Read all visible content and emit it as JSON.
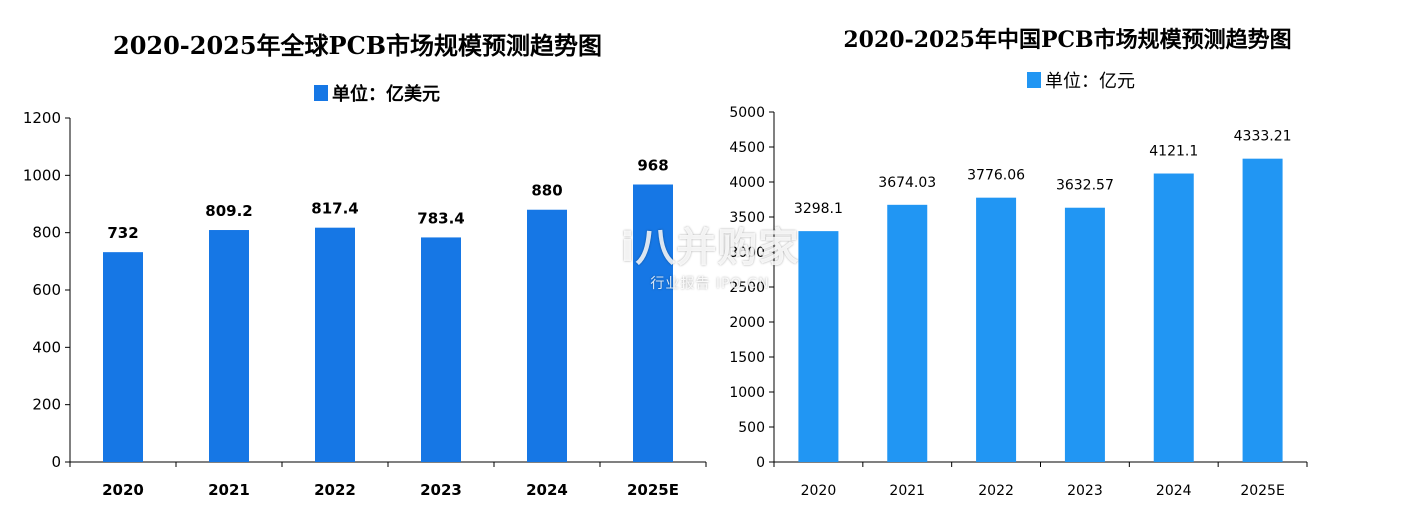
{
  "chart_data": [
    {
      "type": "bar",
      "title": "2020-2025年全球PCB市场规模预测趋势图",
      "legend": "单位：亿美元",
      "legend_placement": "top",
      "categories": [
        "2020",
        "2021",
        "2022",
        "2023",
        "2024",
        "2025E"
      ],
      "series": [
        {
          "name": "单位：亿美元",
          "values": [
            732,
            809.2,
            817.4,
            783.4,
            880,
            968
          ]
        }
      ],
      "data_labels": [
        "732",
        "809.2",
        "817.4",
        "783.4",
        "880",
        "968"
      ],
      "ylim": [
        0,
        1200
      ],
      "yticks": [
        0,
        200,
        400,
        600,
        800,
        1000,
        1200
      ],
      "grid": false,
      "color": "#1677e5"
    },
    {
      "type": "bar",
      "title": "2020-2025年中国PCB市场规模预测趋势图",
      "legend": "单位：亿元",
      "legend_placement": "top",
      "categories": [
        "2020",
        "2021",
        "2022",
        "2023",
        "2024",
        "2025E"
      ],
      "series": [
        {
          "name": "单位：亿元",
          "values": [
            3298.1,
            3674.03,
            3776.06,
            3632.57,
            4121.1,
            4333.21
          ]
        }
      ],
      "data_labels": [
        "3298.1",
        "3674.03",
        "3776.06",
        "3632.57",
        "4121.1",
        "4333.21"
      ],
      "ylim": [
        0,
        5000
      ],
      "yticks": [
        0,
        500,
        1000,
        1500,
        2000,
        2500,
        3000,
        3500,
        4000,
        4500,
        5000
      ],
      "grid": false,
      "color": "#2196f3"
    }
  ],
  "watermark": {
    "main": "i八并购家",
    "sub": "行业报告 IPO.CN"
  }
}
